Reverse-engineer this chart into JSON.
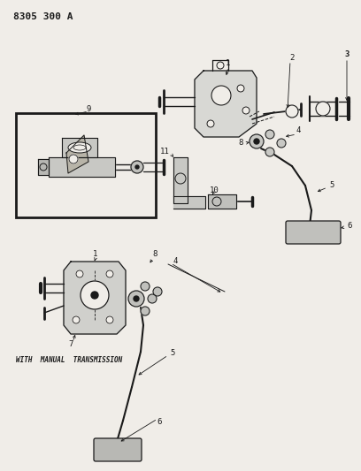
{
  "title": "8305 300 A",
  "bg": "#f0ede8",
  "lc": "#1a1a1a",
  "tc": "#1a1a1a",
  "figsize": [
    4.08,
    5.33
  ],
  "dpi": 100
}
